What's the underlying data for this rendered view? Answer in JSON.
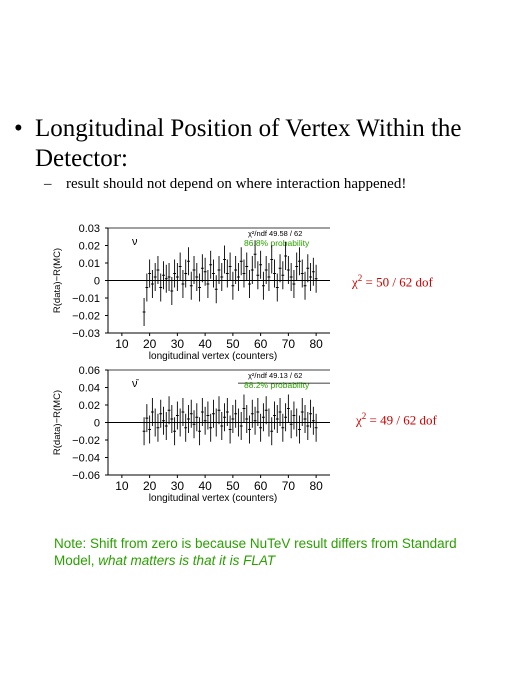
{
  "slide": {
    "bullet_symbol": "•",
    "bullet_text": "Longitudinal Position of Vertex Within the Detector:",
    "sub_dash": "–",
    "sub_text": "result should not depend on where interaction happened!",
    "chi_top": "χ",
    "chi_top_exp": "2",
    "chi_top_rest": " = 50 / 62 dof",
    "chi_bottom": "χ",
    "chi_bottom_exp": "2",
    "chi_bottom_rest": " = 49 / 62 dof",
    "note_plain": "Note: Shift from zero is because NuTeV result differs from Standard Model, ",
    "note_italic": "what  matters is that  it  is FLAT"
  },
  "colors": {
    "chi": "#cc0000",
    "note": "#2aa000",
    "probability": "#2aa000"
  },
  "chart_data": [
    {
      "type": "scatter",
      "panel_symbol": "ν",
      "fit_label": "χ²/ndf    49.58  /   62",
      "probability_label": "86.8% probability",
      "xlabel": "longitudinal vertex (counters)",
      "ylabel": "R(data)−R(MC)",
      "xlim": [
        5,
        85
      ],
      "ylim": [
        -0.03,
        0.03
      ],
      "xticks": [
        "10",
        "20",
        "30",
        "40",
        "50",
        "60",
        "70",
        "80"
      ],
      "yticks": [
        "0.03",
        "0.02",
        "0.01",
        "0",
        "−0.01",
        "−0.02",
        "−0.03"
      ],
      "ytick_values": [
        0.03,
        0.02,
        0.01,
        0,
        -0.01,
        -0.02,
        -0.03
      ],
      "fit_line": 0,
      "x": [
        18,
        19,
        20,
        21,
        22,
        23,
        24,
        25,
        26,
        27,
        28,
        29,
        30,
        31,
        32,
        33,
        34,
        35,
        36,
        37,
        38,
        39,
        40,
        41,
        42,
        43,
        44,
        45,
        46,
        47,
        48,
        49,
        50,
        51,
        52,
        53,
        54,
        55,
        56,
        57,
        58,
        59,
        60,
        61,
        62,
        63,
        64,
        65,
        66,
        67,
        68,
        69,
        70,
        71,
        72,
        73,
        74,
        75,
        76,
        77,
        78,
        79,
        80
      ],
      "y": [
        -0.018,
        -0.004,
        0.004,
        -0.002,
        0.002,
        0.006,
        -0.004,
        0.003,
        0.001,
        0.002,
        -0.006,
        0.004,
        0.002,
        0.008,
        -0.002,
        0.004,
        0.011,
        -0.003,
        0.006,
        0.002,
        -0.004,
        0.007,
        0.005,
        -0.002,
        0.009,
        0.004,
        -0.005,
        0.006,
        0.002,
        0.012,
        0.004,
        0.008,
        -0.003,
        0.006,
        0.002,
        0.011,
        0.004,
        0.008,
        -0.002,
        0.006,
        0.015,
        0.003,
        0.009,
        -0.003,
        0.006,
        0.002,
        0.012,
        0.004,
        -0.004,
        0.007,
        0.003,
        0.014,
        0.006,
        0.002,
        -0.002,
        0.008,
        0.011,
        0.004,
        -0.003,
        0.007,
        0.002,
        0.005,
        0.001
      ],
      "err": 0.008
    },
    {
      "type": "scatter",
      "panel_symbol": "ν̄",
      "fit_label": "χ²/ndf    49.13  /   62",
      "probability_label": "88.2% probability",
      "xlabel": "longitudinal vertex (counters)",
      "ylabel": "R(data)−R(MC)",
      "xlim": [
        5,
        85
      ],
      "ylim": [
        -0.06,
        0.06
      ],
      "xticks": [
        "10",
        "20",
        "30",
        "40",
        "50",
        "60",
        "70",
        "80"
      ],
      "yticks": [
        "0.06",
        "0.04",
        "0.02",
        "0",
        "−0.02",
        "−0.04",
        "−0.06"
      ],
      "ytick_values": [
        0.06,
        0.04,
        0.02,
        0,
        -0.02,
        -0.04,
        -0.06
      ],
      "fit_line": 0.045,
      "x": [
        18,
        19,
        20,
        21,
        22,
        23,
        24,
        25,
        26,
        27,
        28,
        29,
        30,
        31,
        32,
        33,
        34,
        35,
        36,
        37,
        38,
        39,
        40,
        41,
        42,
        43,
        44,
        45,
        46,
        47,
        48,
        49,
        50,
        51,
        52,
        53,
        54,
        55,
        56,
        57,
        58,
        59,
        60,
        61,
        62,
        63,
        64,
        65,
        66,
        67,
        68,
        69,
        70,
        71,
        72,
        73,
        74,
        75,
        76,
        77,
        78,
        79,
        80
      ],
      "y": [
        -0.01,
        0.005,
        -0.008,
        0.012,
        0.0,
        -0.006,
        0.01,
        0.002,
        -0.004,
        0.014,
        0.004,
        -0.01,
        0.008,
        0.0,
        0.012,
        -0.006,
        0.004,
        0.01,
        -0.002,
        0.006,
        -0.01,
        0.012,
        0.002,
        0.008,
        -0.006,
        0.01,
        0.0,
        0.014,
        -0.004,
        0.006,
        0.012,
        -0.008,
        0.004,
        0.01,
        0.0,
        -0.004,
        0.016,
        0.004,
        -0.008,
        0.01,
        0.002,
        0.012,
        -0.006,
        0.006,
        0.014,
        0.0,
        -0.01,
        0.008,
        0.004,
        0.012,
        -0.006,
        0.006,
        0.016,
        -0.002,
        0.008,
        0.0,
        -0.008,
        0.012,
        0.004,
        -0.004,
        0.01,
        0.002,
        -0.006
      ],
      "err": 0.016
    }
  ]
}
